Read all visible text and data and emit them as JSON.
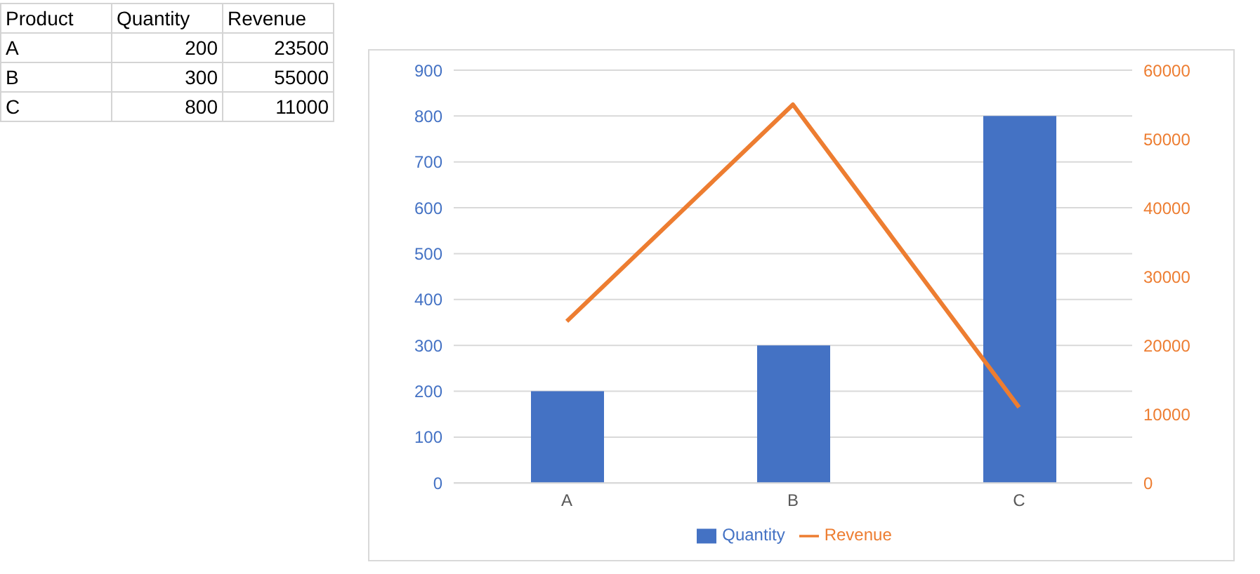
{
  "chart_data": [
    {
      "type": "other",
      "annotations": [
        "Product",
        "Quantity",
        "Revenue",
        "A",
        "200",
        "23500",
        "B",
        "300",
        "55000",
        "C",
        "800",
        "11000"
      ]
    },
    {
      "type": "bar",
      "categories": [
        "A",
        "B",
        "C"
      ],
      "series": [
        {
          "name": "Quantity",
          "type": "bar",
          "color": "#4472c4",
          "values": [
            200,
            300,
            800
          ]
        },
        {
          "name": "Revenue",
          "type": "line",
          "axis": "y2",
          "color": "#ed7d31",
          "values": [
            23500,
            55000,
            11000
          ]
        }
      ],
      "ylim": [
        0,
        900
      ],
      "yticks": [
        0,
        100,
        200,
        300,
        400,
        500,
        600,
        700,
        800,
        900
      ],
      "y2lim": [
        0,
        60000
      ],
      "y2ticks": [
        0,
        10000,
        20000,
        30000,
        40000,
        50000,
        60000
      ],
      "grid": "y",
      "legend": "bottom",
      "marker": "none",
      "line_style": "solid"
    }
  ]
}
